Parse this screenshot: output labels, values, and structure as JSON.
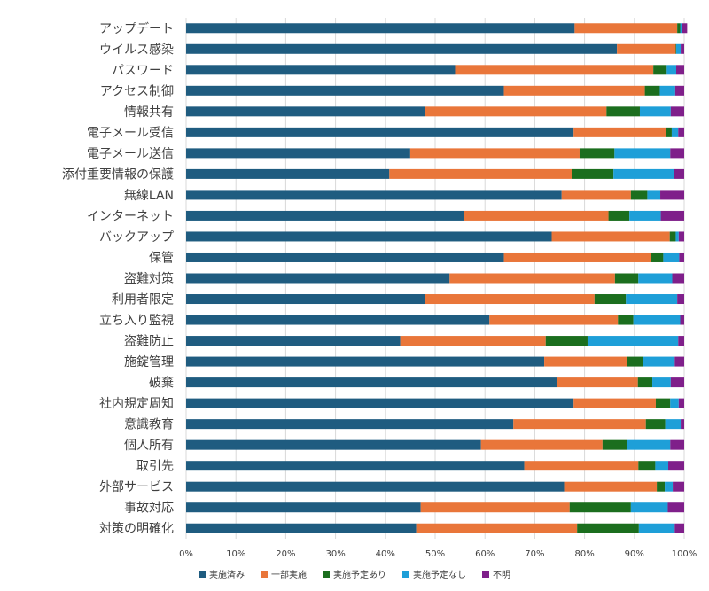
{
  "chart_data": {
    "type": "bar",
    "orientation": "horizontal",
    "stacked": true,
    "title": "",
    "xlabel": "",
    "ylabel": "",
    "xlim": [
      0,
      100
    ],
    "x_ticks": [
      "0%",
      "10%",
      "20%",
      "30%",
      "40%",
      "50%",
      "60%",
      "70%",
      "80%",
      "90%",
      "100%"
    ],
    "grid": "vertical",
    "legend_position": "bottom",
    "categories": [
      "アップデート",
      "ウイルス感染",
      "パスワード",
      "アクセス制御",
      "情報共有",
      "電子メール受信",
      "電子メール送信",
      "添付重要情報の保護",
      "無線LAN",
      "インターネット",
      "バックアップ",
      "保管",
      "盗難対策",
      "利用者限定",
      "立ち入り監視",
      "盗難防止",
      "施錠管理",
      "破棄",
      "社内規定周知",
      "意識教育",
      "個人所有",
      "取引先",
      "外部サービス",
      "事故対応",
      "対策の明確化"
    ],
    "series": [
      {
        "name": "実施済み",
        "color": "#1F5C80",
        "values": [
          78.0,
          86.5,
          54.0,
          63.8,
          48.0,
          77.8,
          45.0,
          40.8,
          75.4,
          55.8,
          73.4,
          63.8,
          52.9,
          48.0,
          60.9,
          43.0,
          71.9,
          74.4,
          77.8,
          65.7,
          59.2,
          67.9,
          75.9,
          47.1,
          46.2
        ]
      },
      {
        "name": "一部実施",
        "color": "#E9763A",
        "values": [
          20.6,
          11.8,
          39.8,
          28.3,
          36.4,
          18.5,
          34.0,
          36.6,
          13.9,
          29.0,
          23.7,
          29.6,
          33.2,
          34.0,
          25.8,
          29.2,
          16.6,
          16.3,
          16.5,
          26.6,
          24.4,
          22.9,
          18.6,
          29.9,
          32.3
        ]
      },
      {
        "name": "実施予定あり",
        "color": "#1B6E1E",
        "values": [
          0.6,
          0.1,
          2.7,
          3.0,
          6.7,
          1.2,
          7.0,
          8.4,
          3.3,
          4.2,
          1.2,
          2.4,
          4.7,
          6.3,
          3.1,
          8.4,
          3.3,
          2.9,
          2.9,
          3.9,
          5.0,
          3.4,
          1.6,
          12.3,
          12.4
        ]
      },
      {
        "name": "実施予定なし",
        "color": "#1E9FD8",
        "values": [
          0.3,
          0.9,
          1.9,
          3.1,
          6.2,
          1.3,
          11.2,
          12.1,
          2.6,
          6.3,
          0.6,
          3.2,
          6.8,
          10.3,
          9.4,
          18.2,
          6.3,
          3.7,
          1.7,
          3.1,
          8.6,
          2.6,
          1.6,
          7.4,
          7.2
        ]
      },
      {
        "name": "不明",
        "color": "#7F1F8A",
        "values": [
          1.1,
          0.7,
          1.6,
          1.8,
          2.7,
          1.2,
          2.8,
          2.1,
          4.8,
          4.7,
          1.1,
          1.0,
          2.4,
          1.4,
          0.8,
          1.2,
          1.9,
          2.7,
          1.1,
          0.7,
          2.8,
          3.2,
          2.3,
          3.3,
          1.9
        ]
      }
    ]
  }
}
